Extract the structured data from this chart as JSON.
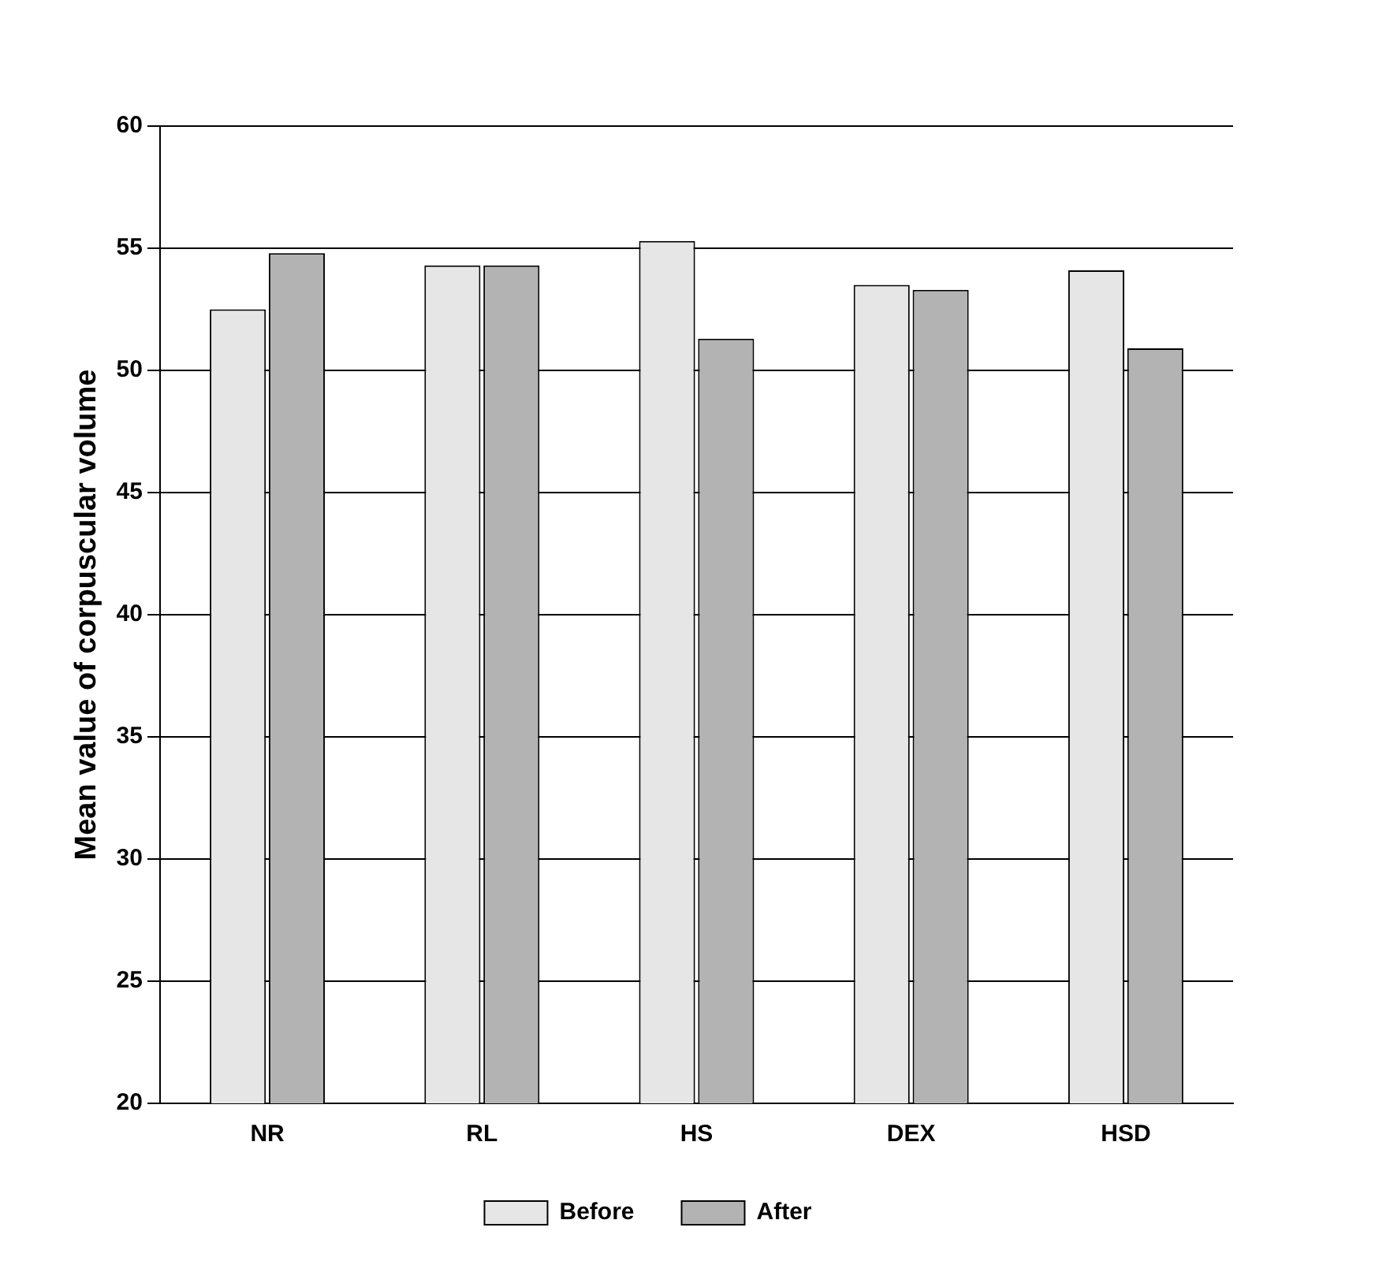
{
  "chart_data": {
    "type": "bar",
    "ylabel": "Mean value of corpuscular volume",
    "categories": [
      "NR",
      "RL",
      "HS",
      "DEX",
      "HSD"
    ],
    "series": [
      {
        "name": "Before",
        "color": "#e6e6e6",
        "values": [
          52.5,
          54.3,
          55.3,
          53.5,
          54.1
        ]
      },
      {
        "name": "After",
        "color": "#b3b3b3",
        "values": [
          54.8,
          54.3,
          51.3,
          53.3,
          50.9
        ]
      }
    ],
    "ylim": [
      20,
      60
    ],
    "yticks": [
      20,
      25,
      30,
      35,
      40,
      45,
      50,
      55,
      60
    ],
    "grid": "y",
    "legend": "bottom"
  }
}
